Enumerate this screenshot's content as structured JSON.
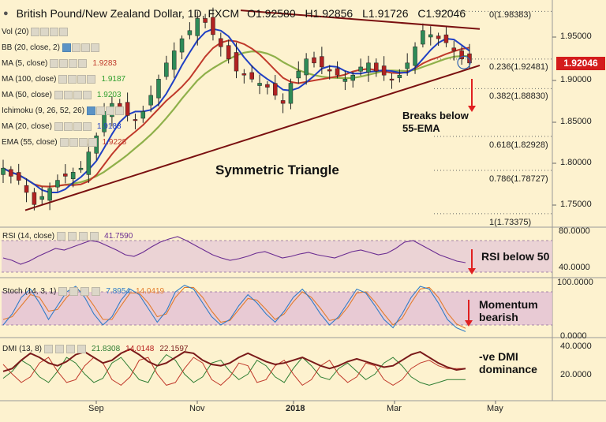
{
  "header": {
    "title": "British Pound/New Zealand Dollar, 1D, FXCM",
    "open": "O1.92580",
    "high": "H1.92856",
    "low": "L1.91726",
    "close": "C1.92046"
  },
  "indicators": [
    {
      "label": "Vol (20)",
      "value": "",
      "color": "#222222",
      "icon": "eye-icon"
    },
    {
      "label": "BB (20, close, 2)",
      "value": "",
      "color": "#222222",
      "icon": "eye-icon"
    },
    {
      "label": "MA (5, close)",
      "value": "1.9283",
      "color": "#c0392b",
      "icon": "eye-icon"
    },
    {
      "label": "MA (100, close)",
      "value": "1.9187",
      "color": "#2e9e2e",
      "icon": "eye-icon"
    },
    {
      "label": "MA (50, close)",
      "value": "1.9203",
      "color": "#2e9e2e",
      "icon": "eye-icon"
    },
    {
      "label": "Ichimoku (9, 26, 52, 26)",
      "value": "",
      "color": "#222222",
      "icon": "eye-icon"
    },
    {
      "label": "MA (20, close)",
      "value": "1.9188",
      "color": "#1f3fc4",
      "icon": "eye-icon"
    },
    {
      "label": "EMA (55, close)",
      "value": "1.9228",
      "color": "#c0392b",
      "icon": "eye-icon"
    }
  ],
  "price_axis": {
    "ticks": [
      "1.95000",
      "1.90000",
      "1.85000",
      "1.80000",
      "1.75000"
    ],
    "last_price": "1.92046",
    "last_price_color": "#d41c1c"
  },
  "fibonacci": [
    {
      "label": "0(1.98383)",
      "price": 1.98383
    },
    {
      "label": "0.236(1.92481)",
      "price": 1.92481
    },
    {
      "label": "0.382(1.88830)",
      "price": 1.8883
    },
    {
      "label": "0.618(1.82928)",
      "price": 1.82928
    },
    {
      "label": "0.786(1.78727)",
      "price": 1.78727
    },
    {
      "label": "1(1.73375)",
      "price": 1.73375
    }
  ],
  "annotations": {
    "pattern": "Symmetric Triangle",
    "breaks_line1": "Breaks below",
    "breaks_line2": "55-EMA",
    "rsi_note": "RSI below 50",
    "stoch_note_line1": "Momentum",
    "stoch_note_line2": "bearish",
    "dmi_note_line1": "-ve DMI",
    "dmi_note_line2": "dominance"
  },
  "rsi_pane": {
    "label": "RSI (14, close)",
    "value": "41.7590",
    "ticks": [
      "80.0000",
      "40.0000"
    ]
  },
  "stoch_pane": {
    "label": "Stoch (14, 3, 1)",
    "value1": "7.8954",
    "value2": "14.0419",
    "ticks": [
      "100.0000",
      "0.0000"
    ]
  },
  "dmi_pane": {
    "label": "DMI (13, 8)",
    "value1": "21.8308",
    "value2": "14.0148",
    "value3": "22.1597",
    "ticks": [
      "40.0000",
      "20.0000"
    ]
  },
  "time_axis": {
    "labels": [
      "Sep",
      "Nov",
      "2018",
      "Mar",
      "May"
    ]
  },
  "chart_data": {
    "type": "line",
    "title": "British Pound/New Zealand Dollar, 1D, FXCM",
    "instrument": "GBP/NZD",
    "timeframe": "1D",
    "x_labels": [
      "Sep",
      "Nov",
      "2018",
      "Mar",
      "May"
    ],
    "ylim": [
      1.72,
      1.99
    ],
    "price_approx": [
      1.79,
      1.78,
      1.775,
      1.76,
      1.745,
      1.755,
      1.765,
      1.775,
      1.78,
      1.785,
      1.79,
      1.81,
      1.83,
      1.86,
      1.87,
      1.865,
      1.855,
      1.85,
      1.86,
      1.88,
      1.9,
      1.92,
      1.935,
      1.95,
      1.96,
      1.975,
      1.97,
      1.955,
      1.94,
      1.925,
      1.91,
      1.905,
      1.9,
      1.895,
      1.89,
      1.88,
      1.87,
      1.895,
      1.91,
      1.925,
      1.92,
      1.915,
      1.91,
      1.905,
      1.9,
      1.905,
      1.915,
      1.92,
      1.91,
      1.905,
      1.9,
      1.905,
      1.92,
      1.94,
      1.96,
      1.955,
      1.95,
      1.945,
      1.935,
      1.925,
      1.92
    ],
    "series": [
      {
        "name": "MA (5, close)",
        "last": 1.9283
      },
      {
        "name": "MA (100, close)",
        "last": 1.9187
      },
      {
        "name": "MA (50, close)",
        "last": 1.9203
      },
      {
        "name": "MA (20, close)",
        "last": 1.9188
      },
      {
        "name": "EMA (55, close)",
        "last": 1.9228
      }
    ],
    "triangle": {
      "upper_start": 1.985,
      "upper_end": 1.962,
      "lower_start": 1.738,
      "lower_end": 1.917
    },
    "fibonacci_levels": [
      1.98383,
      1.92481,
      1.8883,
      1.82928,
      1.78727,
      1.73375
    ],
    "rsi": {
      "name": "RSI (14, close)",
      "last": 41.759,
      "ylim": [
        25,
        85
      ],
      "levels": [
        70,
        30
      ],
      "values": [
        48,
        45,
        40,
        44,
        50,
        55,
        60,
        58,
        62,
        66,
        70,
        68,
        63,
        58,
        52,
        50,
        55,
        62,
        68,
        72,
        75,
        70,
        64,
        58,
        52,
        48,
        45,
        47,
        50,
        54,
        56,
        52,
        48,
        50,
        53,
        55,
        52,
        50,
        48,
        52,
        56,
        58,
        55,
        52,
        54,
        60,
        68,
        70,
        64,
        58,
        52,
        48,
        44,
        42
      ]
    },
    "stoch": {
      "name": "Stoch (14, 3, 1)",
      "k_last": 7.8954,
      "d_last": 14.0419,
      "ylim": [
        0,
        100
      ],
      "levels": [
        80,
        20
      ],
      "k": [
        20,
        40,
        70,
        85,
        60,
        30,
        55,
        80,
        90,
        70,
        40,
        20,
        35,
        65,
        85,
        75,
        50,
        25,
        45,
        80,
        92,
        85,
        60,
        35,
        20,
        30,
        55,
        75,
        60,
        40,
        25,
        45,
        70,
        85,
        65,
        40,
        20,
        35,
        60,
        85,
        78,
        55,
        30,
        15,
        40,
        70,
        90,
        85,
        60,
        30,
        15,
        8
      ],
      "d": [
        30,
        35,
        55,
        75,
        70,
        45,
        48,
        70,
        85,
        78,
        55,
        30,
        30,
        55,
        78,
        78,
        60,
        35,
        40,
        70,
        88,
        88,
        70,
        45,
        25,
        28,
        48,
        68,
        65,
        48,
        30,
        40,
        62,
        80,
        70,
        50,
        28,
        32,
        52,
        78,
        80,
        62,
        40,
        20,
        32,
        60,
        85,
        88,
        70,
        42,
        22,
        14
      ]
    },
    "dmi": {
      "name": "DMI (13, 8)",
      "last": [
        21.8308,
        14.0148,
        22.1597
      ],
      "ylim": [
        0,
        42
      ],
      "adx": [
        20,
        22,
        28,
        33,
        30,
        26,
        24,
        27,
        32,
        34,
        30,
        26,
        28,
        33,
        36,
        32,
        27,
        24,
        26,
        30,
        34,
        33,
        28,
        25,
        24,
        26,
        30,
        33,
        30,
        27,
        25,
        26,
        28,
        30,
        27,
        24,
        22,
        24,
        27,
        29,
        27,
        25,
        23,
        24,
        28,
        32,
        34,
        30,
        26,
        23,
        21,
        22
      ],
      "plus_di": [
        15,
        20,
        28,
        24,
        16,
        12,
        20,
        30,
        26,
        18,
        12,
        15,
        26,
        30,
        22,
        14,
        12,
        24,
        32,
        28,
        18,
        12,
        16,
        26,
        28,
        20,
        14,
        18,
        28,
        24,
        16,
        12,
        22,
        30,
        24,
        16,
        14,
        22,
        26,
        20,
        14,
        18,
        26,
        30,
        24,
        16,
        12,
        10,
        12,
        14,
        14,
        14
      ],
      "minus_di": [
        25,
        18,
        12,
        16,
        26,
        30,
        20,
        12,
        14,
        24,
        30,
        26,
        14,
        10,
        16,
        28,
        30,
        18,
        10,
        12,
        22,
        30,
        26,
        14,
        10,
        16,
        26,
        24,
        12,
        14,
        24,
        28,
        18,
        10,
        14,
        24,
        28,
        18,
        12,
        16,
        26,
        24,
        14,
        10,
        14,
        22,
        26,
        28,
        24,
        22,
        22,
        22
      ]
    }
  }
}
